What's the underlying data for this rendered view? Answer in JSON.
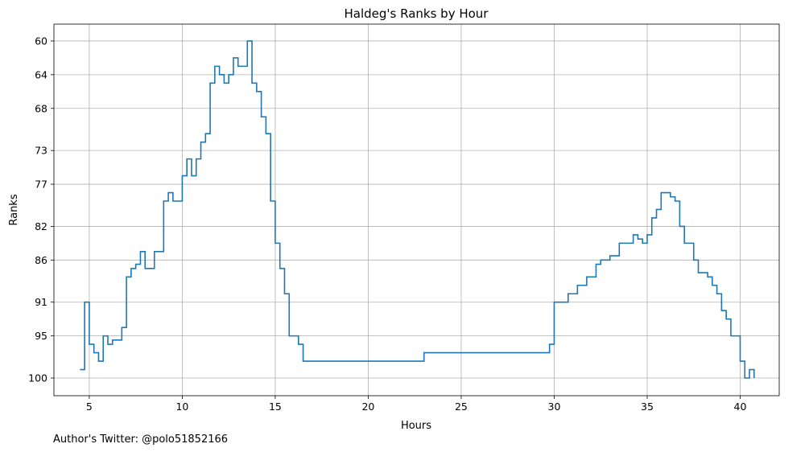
{
  "chart_data": {
    "type": "line",
    "style": "step",
    "title": "Haldeg's Ranks by Hour",
    "xlabel": "Hours",
    "ylabel": "Ranks",
    "xlim": [
      3.1,
      42.1
    ],
    "ylim": [
      102.1,
      58.0
    ],
    "y_inverted": true,
    "grid": true,
    "x_ticks": [
      5,
      10,
      15,
      20,
      25,
      30,
      35,
      40
    ],
    "y_ticks": [
      60,
      64,
      68,
      73,
      77,
      82,
      86,
      91,
      95,
      100
    ],
    "series": [
      {
        "color": "#1f77b4",
        "x": [
          4.5,
          4.75,
          5.0,
          5.25,
          5.5,
          5.75,
          6.0,
          6.25,
          6.75,
          7.0,
          7.25,
          7.5,
          7.75,
          8.0,
          8.5,
          9.0,
          9.25,
          9.5,
          10.0,
          10.25,
          10.5,
          10.75,
          11.0,
          11.25,
          11.5,
          11.75,
          12.0,
          12.25,
          12.5,
          12.75,
          13.0,
          13.5,
          13.75,
          14.0,
          14.25,
          14.5,
          14.75,
          15.0,
          15.25,
          15.5,
          15.75,
          16.25,
          16.5,
          22.75,
          23.0,
          29.5,
          29.75,
          30.0,
          30.5,
          30.75,
          31.25,
          31.75,
          32.25,
          32.5,
          32.75,
          33.0,
          33.5,
          34.25,
          34.5,
          34.75,
          35.0,
          35.25,
          35.5,
          35.75,
          36.25,
          36.5,
          36.75,
          37.0,
          37.5,
          37.75,
          38.0,
          38.25,
          38.5,
          38.75,
          39.0,
          39.25,
          39.5,
          40.0,
          40.25,
          40.5,
          40.75
        ],
        "y": [
          99,
          91,
          96,
          97,
          98,
          95,
          96,
          95.5,
          94,
          88,
          87,
          86.5,
          85,
          87,
          85,
          79,
          78,
          79,
          76,
          74,
          76,
          74,
          72,
          71,
          65,
          63,
          64,
          65,
          64,
          62,
          63,
          60,
          65,
          66,
          69,
          71,
          79,
          84,
          87,
          90,
          95,
          96,
          98,
          98,
          97,
          97,
          96,
          91,
          91,
          90,
          89,
          88,
          86.5,
          86,
          86,
          85.5,
          84,
          83,
          83.5,
          84,
          83,
          81,
          80,
          78,
          78.5,
          79,
          82,
          84,
          86,
          87.5,
          87.5,
          88,
          89,
          90,
          92,
          93,
          95,
          98,
          100,
          99,
          100
        ]
      }
    ]
  },
  "footer": {
    "author_text": "Author's Twitter: @polo51852166"
  }
}
